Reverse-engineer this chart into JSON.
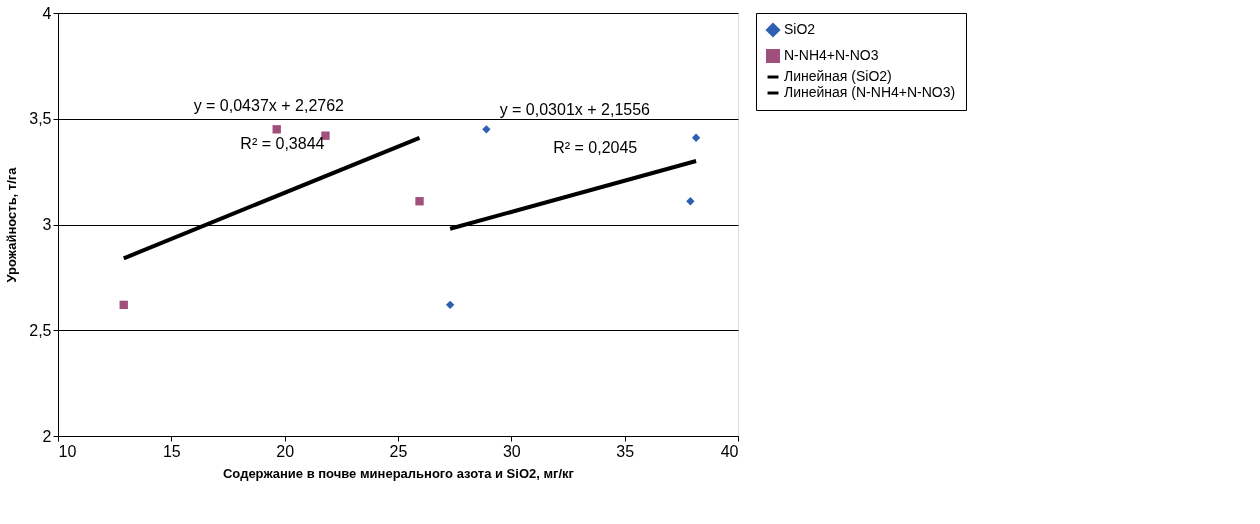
{
  "chart_data": {
    "type": "scatter",
    "xlabel": "Содержание в почве минерального азота и SiO2, мг/кг",
    "ylabel": "Урожайность, т/га",
    "xlim": [
      10,
      40
    ],
    "xticks": [
      10,
      15,
      20,
      25,
      30,
      35,
      40
    ],
    "ylim": [
      2,
      4
    ],
    "yticks": [
      2,
      {
        "value": 2.5,
        "label": "2,5"
      },
      3,
      {
        "value": 3.5,
        "label": "3,5"
      },
      4
    ],
    "grid": "y",
    "legend": "right",
    "series": [
      {
        "name": "SiO2",
        "marker": "diamond",
        "color": "#2e5fb0",
        "x": [
          27.3,
          28.9,
          37.9,
          38.15
        ],
        "values": [
          2.62,
          3.45,
          3.11,
          3.41
        ]
      },
      {
        "name": "N-NH4+N-NO3",
        "marker": "square",
        "color": "#a0507a",
        "x": [
          12.9,
          19.65,
          21.8,
          25.95
        ],
        "values": [
          2.62,
          3.45,
          3.42,
          3.11
        ]
      },
      {
        "name": "Линейная (SiO2)",
        "type": "line",
        "marker": "none",
        "line_style": "solid",
        "color": "#000000",
        "x": [
          27.3,
          38.15
        ],
        "values": [
          2.98,
          3.3
        ]
      },
      {
        "name": "Линейная (N-NH4+N-NO3)",
        "type": "line",
        "marker": "none",
        "line_style": "solid",
        "color": "#000000",
        "x": [
          12.9,
          25.95
        ],
        "values": [
          2.84,
          3.41
        ]
      }
    ],
    "annotations": [
      "y = 0,0437x + 2,2762",
      "R² = 0,3844",
      "y = 0,0301x + 2,1556",
      "R² = 0,2045"
    ]
  }
}
